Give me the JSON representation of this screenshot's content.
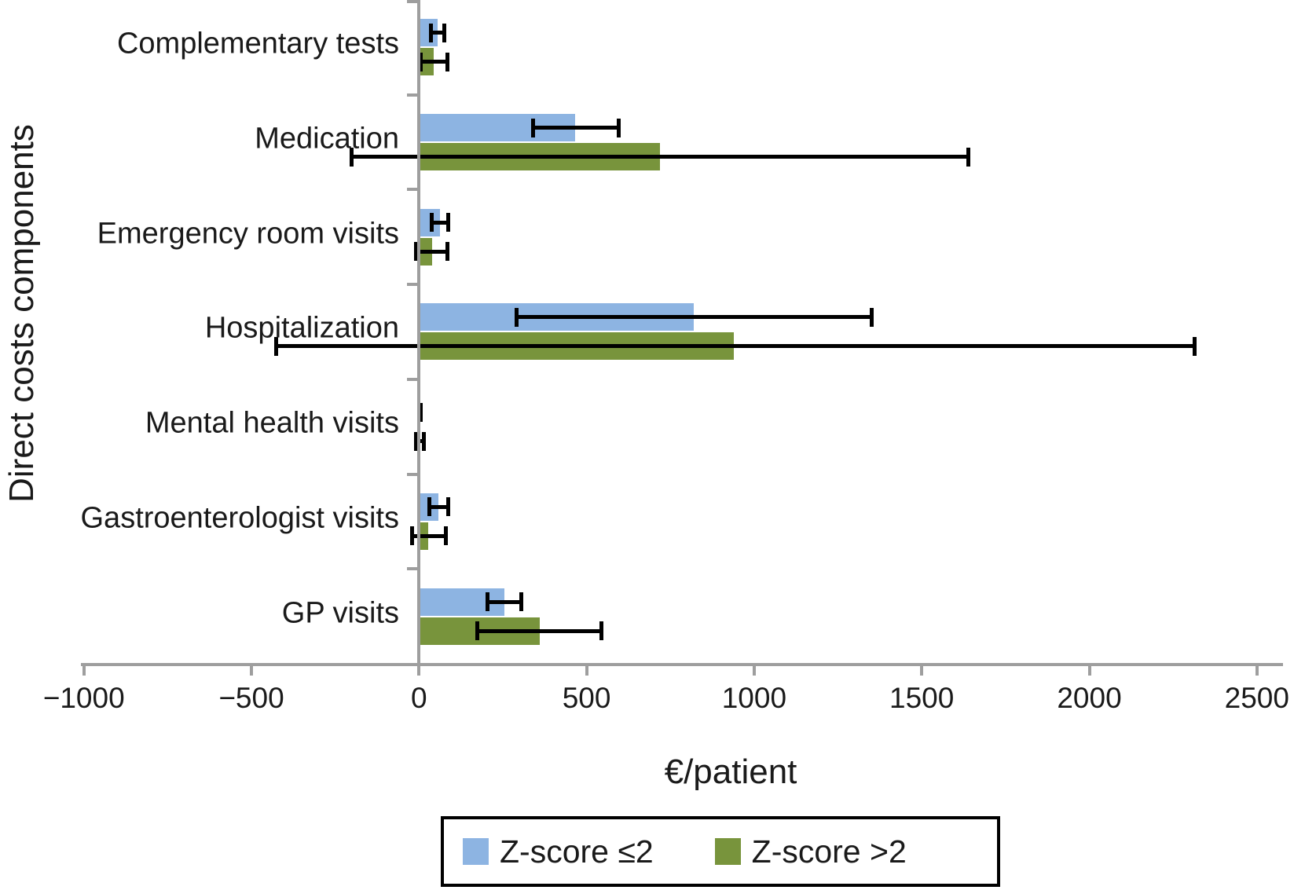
{
  "chart_data": {
    "type": "bar",
    "orientation": "horizontal",
    "title": "",
    "xlabel": "€/patient",
    "ylabel": "Direct costs components",
    "xlim": [
      -1000,
      2500
    ],
    "x_tick_step": 500,
    "grid": false,
    "error_bars": true,
    "legend_position": "bottom",
    "categories": [
      "Complementary tests",
      "Medication",
      "Emergency room visits",
      "Hospitalization",
      "Mental health visits",
      "Gastroenterologist visits",
      "GP visits"
    ],
    "series": [
      {
        "name": "Z-score ≤2",
        "color": "#8DB4E2",
        "values": [
          55,
          465,
          62,
          820,
          2,
          58,
          255
        ],
        "error_low": [
          35,
          340,
          37,
          290,
          0,
          30,
          205
        ],
        "error_high": [
          75,
          595,
          88,
          1350,
          5,
          87,
          305
        ]
      },
      {
        "name": "Z-score >2",
        "color": "#78943C",
        "values": [
          45,
          720,
          38,
          940,
          3,
          28,
          360
        ],
        "error_low": [
          5,
          -200,
          -8,
          -425,
          -10,
          -20,
          175
        ],
        "error_high": [
          85,
          1640,
          85,
          2315,
          15,
          80,
          545
        ]
      }
    ]
  },
  "axes": {
    "x_ticks": [
      {
        "value": -1000,
        "label": "−1000"
      },
      {
        "value": -500,
        "label": "−500"
      },
      {
        "value": 0,
        "label": "0"
      },
      {
        "value": 500,
        "label": "500"
      },
      {
        "value": 1000,
        "label": "1000"
      },
      {
        "value": 1500,
        "label": "1500"
      },
      {
        "value": 2000,
        "label": "2000"
      },
      {
        "value": 2500,
        "label": "2500"
      }
    ]
  },
  "legend": {
    "items": [
      {
        "label": "Z-score ≤2",
        "color": "#8DB4E2"
      },
      {
        "label": "Z-score >2",
        "color": "#78943C"
      }
    ]
  },
  "colors": {
    "axis": "#9e9e9e",
    "error_bar": "#000000",
    "text": "#1a1a1a"
  }
}
